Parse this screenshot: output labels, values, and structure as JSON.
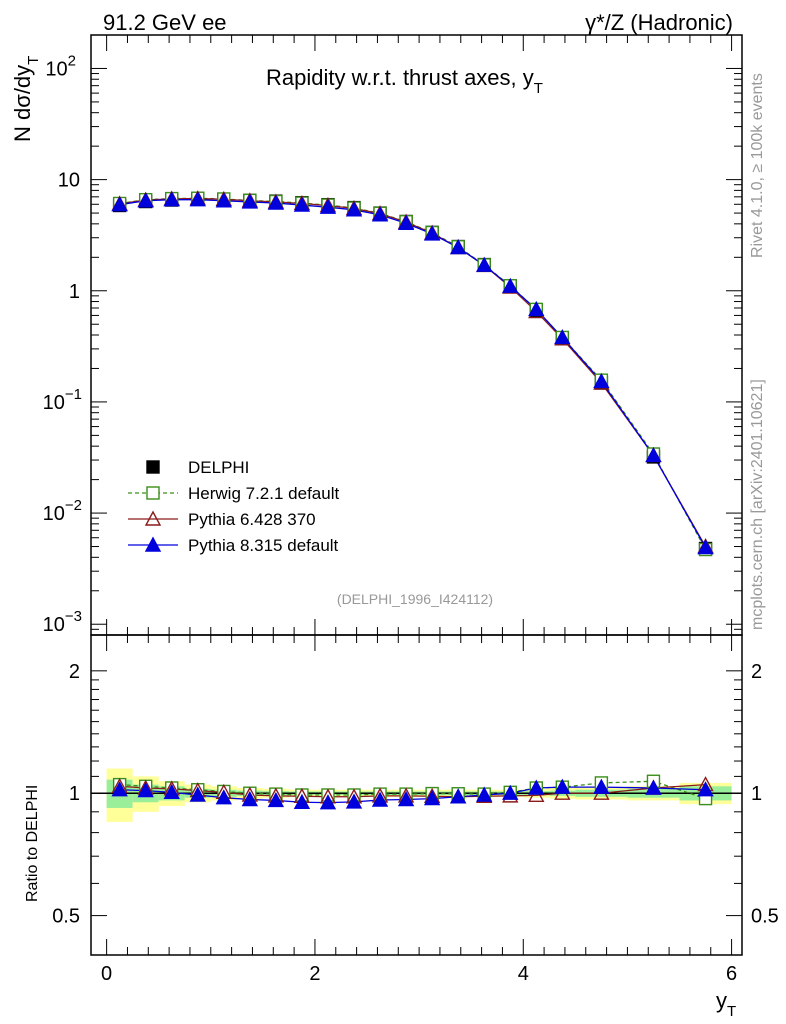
{
  "header": {
    "left": "91.2 GeV ee",
    "right": "γ*/Z (Hadronic)"
  },
  "side_labels": {
    "rivet": "Rivet 4.1.0, ≥ 100k events",
    "mcplots": "mcplots.cern.ch [arXiv:2401.10621]"
  },
  "reference": "(DELPHI_1996_I424112)",
  "chart_data": [
    {
      "type": "line",
      "title": "Rapidity w.r.t. thrust axes, y",
      "title_sub": "T",
      "ylabel": "N  dσ/dy",
      "ylabel_sub": "T",
      "yscale": "log",
      "xlim": [
        -0.15,
        6.1
      ],
      "ylim": [
        0.0008,
        200
      ],
      "y_ticks": [
        {
          "value": 0.001,
          "base": "10",
          "exp": "−3"
        },
        {
          "value": 0.01,
          "base": "10",
          "exp": "−2"
        },
        {
          "value": 0.1,
          "base": "10",
          "exp": "−1"
        },
        {
          "value": 1,
          "base": "1",
          "exp": ""
        },
        {
          "value": 10,
          "base": "10",
          "exp": ""
        },
        {
          "value": 100,
          "base": "10",
          "exp": "2"
        }
      ],
      "x": [
        0.125,
        0.375,
        0.625,
        0.875,
        1.125,
        1.375,
        1.625,
        1.875,
        2.125,
        2.375,
        2.625,
        2.875,
        3.125,
        3.375,
        3.625,
        3.875,
        4.125,
        4.375,
        4.75,
        5.25,
        5.75
      ],
      "legend": [
        {
          "label": "DELPHI",
          "marker": "square-filled",
          "color": "#000000"
        },
        {
          "label": "Herwig 7.2.1 default",
          "marker": "square-open",
          "color": "#3a8f1a",
          "dashed": true
        },
        {
          "label": "Pythia 6.428 370",
          "marker": "triangle-open",
          "color": "#8b1a1a"
        },
        {
          "label": "Pythia 8.315 default",
          "marker": "triangle-filled",
          "color": "#0000dd"
        }
      ],
      "series": [
        {
          "name": "DELPHI",
          "color": "#000000",
          "values": [
            5.85,
            6.35,
            6.55,
            6.65,
            6.6,
            6.5,
            6.4,
            6.2,
            5.95,
            5.6,
            5.0,
            4.2,
            3.35,
            2.5,
            1.72,
            1.1,
            0.66,
            0.37,
            0.148,
            0.032,
            0.0048
          ]
        },
        {
          "name": "Herwig 7.2.1 default",
          "color": "#3a8f1a",
          "values": [
            6.1,
            6.6,
            6.75,
            6.8,
            6.7,
            6.5,
            6.35,
            6.15,
            5.9,
            5.55,
            4.98,
            4.18,
            3.34,
            2.49,
            1.71,
            1.11,
            0.68,
            0.38,
            0.157,
            0.034,
            0.0047
          ]
        },
        {
          "name": "Pythia 6.428 370",
          "color": "#8b1a1a",
          "values": [
            6.05,
            6.55,
            6.7,
            6.75,
            6.65,
            6.45,
            6.3,
            6.1,
            5.85,
            5.5,
            4.95,
            4.15,
            3.3,
            2.45,
            1.69,
            1.08,
            0.65,
            0.37,
            0.148,
            0.033,
            0.005
          ]
        },
        {
          "name": "Pythia 8.315 default",
          "color": "#0000dd",
          "values": [
            5.95,
            6.45,
            6.6,
            6.6,
            6.45,
            6.3,
            6.15,
            5.9,
            5.65,
            5.35,
            4.82,
            4.05,
            3.25,
            2.45,
            1.7,
            1.1,
            0.68,
            0.38,
            0.153,
            0.033,
            0.0049
          ]
        }
      ]
    },
    {
      "type": "line",
      "ylabel": "Ratio to DELPHI",
      "xlabel": "y",
      "xlabel_sub": "T",
      "yscale": "log",
      "xlim": [
        -0.15,
        6.1
      ],
      "ylim": [
        0.4,
        2.45
      ],
      "x_ticks": [
        "0",
        "2",
        "4",
        "6"
      ],
      "y_ticks": [
        {
          "value": 0.5,
          "label": "0.5"
        },
        {
          "value": 1,
          "label": "1"
        },
        {
          "value": 2,
          "label": "2"
        }
      ],
      "x": [
        0.125,
        0.375,
        0.625,
        0.875,
        1.125,
        1.375,
        1.625,
        1.875,
        2.125,
        2.375,
        2.625,
        2.875,
        3.125,
        3.375,
        3.625,
        3.875,
        4.125,
        4.375,
        4.75,
        5.25,
        5.75
      ],
      "band_outer": [
        0.15,
        0.1,
        0.07,
        0.05,
        0.04,
        0.03,
        0.025,
        0.02,
        0.02,
        0.02,
        0.02,
        0.02,
        0.02,
        0.02,
        0.02,
        0.02,
        0.025,
        0.03,
        0.035,
        0.04,
        0.06
      ],
      "band_inner": [
        0.08,
        0.05,
        0.04,
        0.025,
        0.02,
        0.015,
        0.012,
        0.01,
        0.01,
        0.01,
        0.01,
        0.01,
        0.01,
        0.01,
        0.01,
        0.01,
        0.012,
        0.015,
        0.02,
        0.025,
        0.04
      ],
      "series": [
        {
          "name": "Herwig 7.2.1 default",
          "color": "#3a8f1a",
          "values": [
            1.05,
            1.04,
            1.03,
            1.02,
            1.01,
            1.0,
            0.995,
            0.99,
            0.99,
            0.99,
            0.995,
            0.995,
            0.998,
            0.997,
            0.995,
            1.005,
            1.03,
            1.035,
            1.06,
            1.07,
            0.97
          ]
        },
        {
          "name": "Pythia 6.428 370",
          "color": "#8b1a1a",
          "values": [
            1.04,
            1.03,
            1.025,
            1.015,
            1.005,
            0.99,
            0.985,
            0.983,
            0.98,
            0.98,
            0.985,
            0.985,
            0.983,
            0.98,
            0.983,
            0.985,
            0.988,
            1.0,
            1.0,
            1.03,
            1.05
          ]
        },
        {
          "name": "Pythia 8.315 default",
          "color": "#0000dd",
          "values": [
            1.02,
            1.015,
            1.005,
            0.99,
            0.975,
            0.965,
            0.96,
            0.95,
            0.948,
            0.952,
            0.962,
            0.965,
            0.97,
            0.98,
            0.99,
            1.0,
            1.03,
            1.035,
            1.035,
            1.03,
            1.02
          ]
        }
      ]
    }
  ]
}
